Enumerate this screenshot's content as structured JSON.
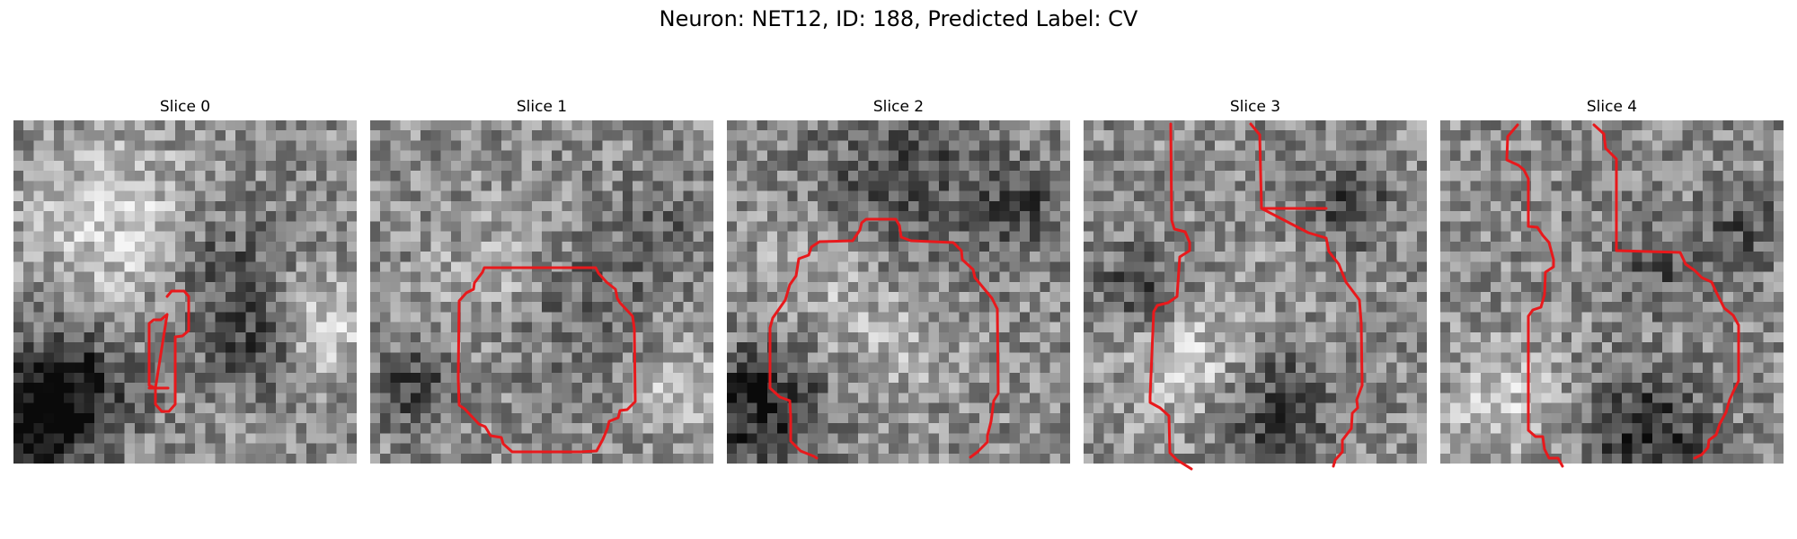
{
  "figure": {
    "title": "Neuron: NET12, ID: 188, Predicted Label: CV"
  },
  "colors": {
    "contour": "#e8191c",
    "background": "#ffffff"
  },
  "panels": [
    {
      "title": "Slice 0"
    },
    {
      "title": "Slice 1"
    },
    {
      "title": "Slice 2"
    },
    {
      "title": "Slice 3"
    },
    {
      "title": "Slice 4"
    }
  ]
}
